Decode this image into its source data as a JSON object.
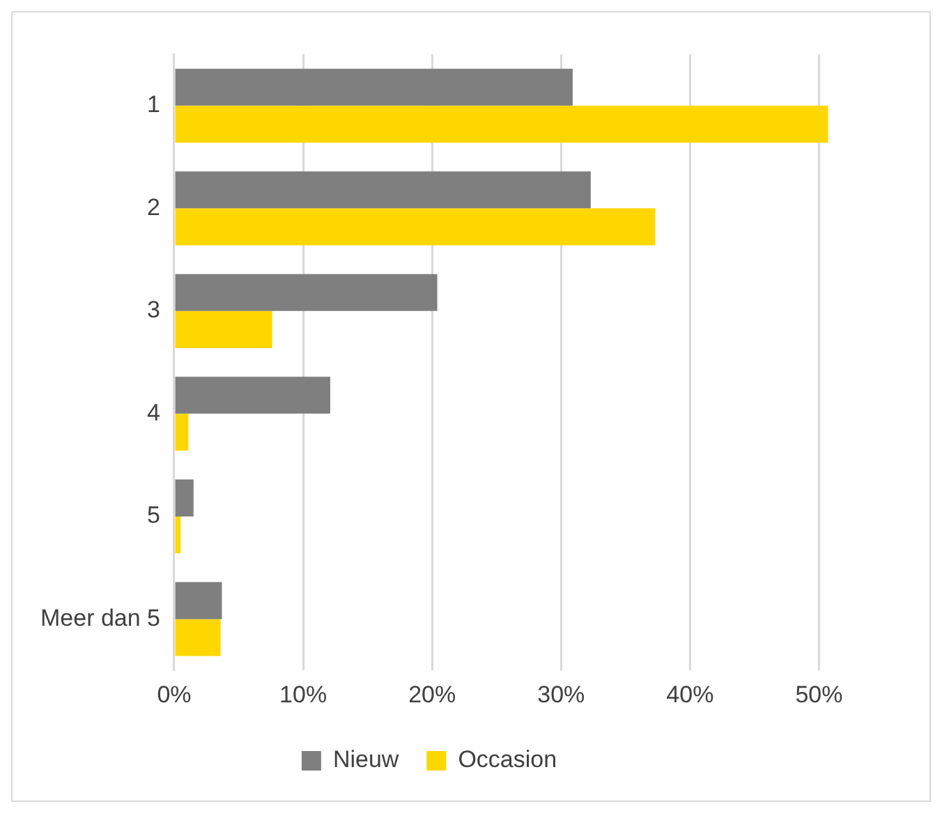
{
  "chart_data": {
    "type": "bar",
    "orientation": "horizontal",
    "categories": [
      "1",
      "2",
      "3",
      "4",
      "5",
      "Meer dan 5"
    ],
    "series": [
      {
        "name": "Nieuw",
        "color": "#7f7f7f",
        "values": [
          30.9,
          32.3,
          20.4,
          12.1,
          1.5,
          3.7
        ]
      },
      {
        "name": "Occasion",
        "color": "#ffd700",
        "values": [
          50.7,
          37.3,
          7.6,
          1.1,
          0.5,
          3.6
        ]
      }
    ],
    "xlim": [
      0,
      51
    ],
    "xticks": [
      {
        "value": 0,
        "label": "0%"
      },
      {
        "value": 10,
        "label": "10%"
      },
      {
        "value": 20,
        "label": "20%"
      },
      {
        "value": 30,
        "label": "30%"
      },
      {
        "value": 40,
        "label": "40%"
      },
      {
        "value": 50,
        "label": "50%"
      }
    ],
    "grid": "x",
    "legend": "bottom"
  }
}
